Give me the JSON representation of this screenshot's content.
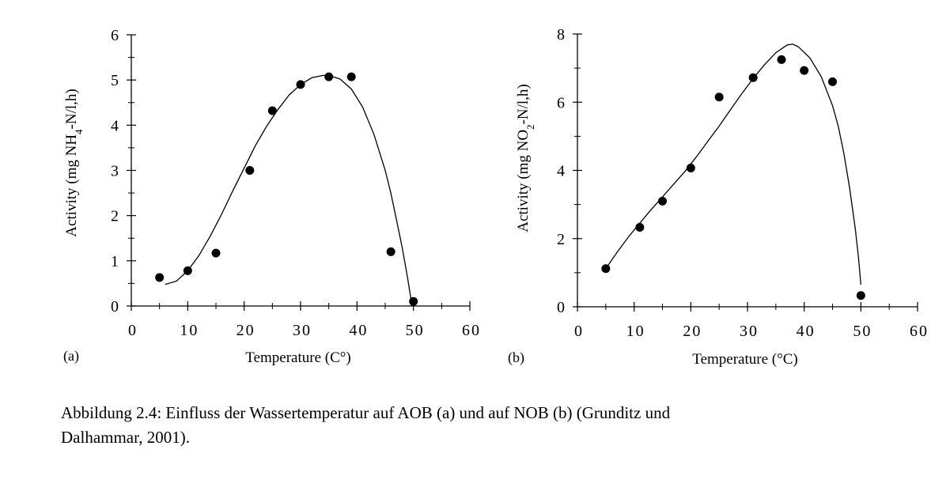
{
  "chart_data": [
    {
      "type": "scatter",
      "panel_label": "(a)",
      "xlabel": "Temperature (C°)",
      "ylabel": "Activity (mg NH4-N/l,h)",
      "ylabel_parts": {
        "pre": "Activity (mg NH",
        "sub": "4",
        "post": "-N/l,h)"
      },
      "xlim": [
        0,
        60
      ],
      "ylim": [
        0,
        6
      ],
      "xticks": [
        0,
        10,
        20,
        30,
        40,
        50,
        60
      ],
      "yticks": [
        0,
        1,
        2,
        3,
        4,
        5,
        6
      ],
      "grid": false,
      "points": [
        [
          5,
          0.63
        ],
        [
          10,
          0.78
        ],
        [
          15,
          1.17
        ],
        [
          21,
          3.0
        ],
        [
          25,
          4.32
        ],
        [
          30,
          4.9
        ],
        [
          35,
          5.07
        ],
        [
          39,
          5.07
        ],
        [
          46,
          1.2
        ],
        [
          50,
          0.1
        ]
      ],
      "fit_curve": [
        [
          6,
          0.48
        ],
        [
          8,
          0.55
        ],
        [
          10,
          0.78
        ],
        [
          12,
          1.12
        ],
        [
          14,
          1.55
        ],
        [
          16,
          2.03
        ],
        [
          18,
          2.55
        ],
        [
          20,
          3.05
        ],
        [
          22,
          3.55
        ],
        [
          24,
          3.98
        ],
        [
          26,
          4.35
        ],
        [
          28,
          4.67
        ],
        [
          30,
          4.9
        ],
        [
          32,
          5.05
        ],
        [
          34,
          5.1
        ],
        [
          35,
          5.1
        ],
        [
          37,
          5.02
        ],
        [
          39,
          4.8
        ],
        [
          41,
          4.4
        ],
        [
          43,
          3.8
        ],
        [
          45,
          3.0
        ],
        [
          46,
          2.5
        ],
        [
          47,
          1.9
        ],
        [
          48,
          1.3
        ],
        [
          49,
          0.6
        ],
        [
          49.5,
          0.2
        ],
        [
          49.7,
          0.0
        ]
      ]
    },
    {
      "type": "scatter",
      "panel_label": "(b)",
      "xlabel": "Temperature (°C)",
      "ylabel": "Activity (mg NO2-N/l,h)",
      "ylabel_parts": {
        "pre": "Activity (mg NO",
        "sub": "2",
        "post": "-N/l,h)"
      },
      "xlim": [
        0,
        60
      ],
      "ylim": [
        0,
        8
      ],
      "xticks": [
        0,
        10,
        20,
        30,
        40,
        50,
        60
      ],
      "yticks": [
        0,
        2,
        4,
        6,
        8
      ],
      "grid": false,
      "points": [
        [
          5,
          1.12
        ],
        [
          11,
          2.33
        ],
        [
          15,
          3.1
        ],
        [
          20,
          4.07
        ],
        [
          25,
          6.15
        ],
        [
          31,
          6.72
        ],
        [
          36,
          7.25
        ],
        [
          40,
          6.93
        ],
        [
          45,
          6.6
        ],
        [
          50,
          0.33
        ]
      ],
      "fit_curve": [
        [
          5,
          1.12
        ],
        [
          7,
          1.6
        ],
        [
          9,
          2.05
        ],
        [
          11,
          2.45
        ],
        [
          13,
          2.85
        ],
        [
          15,
          3.22
        ],
        [
          17,
          3.6
        ],
        [
          19,
          3.98
        ],
        [
          21,
          4.4
        ],
        [
          23,
          4.85
        ],
        [
          25,
          5.3
        ],
        [
          27,
          5.78
        ],
        [
          29,
          6.25
        ],
        [
          31,
          6.7
        ],
        [
          33,
          7.1
        ],
        [
          35,
          7.45
        ],
        [
          37,
          7.68
        ],
        [
          38,
          7.7
        ],
        [
          39,
          7.62
        ],
        [
          41,
          7.3
        ],
        [
          43,
          6.75
        ],
        [
          45,
          5.9
        ],
        [
          46,
          5.3
        ],
        [
          47,
          4.5
        ],
        [
          48,
          3.5
        ],
        [
          49,
          2.3
        ],
        [
          49.6,
          1.4
        ],
        [
          50,
          0.65
        ]
      ]
    }
  ],
  "caption": {
    "line1": "Abbildung 2.4: Einfluss der Wassertemperatur auf AOB (a) und auf  NOB (b)  (Grunditz und",
    "line2": "Dalhammar, 2001)."
  }
}
